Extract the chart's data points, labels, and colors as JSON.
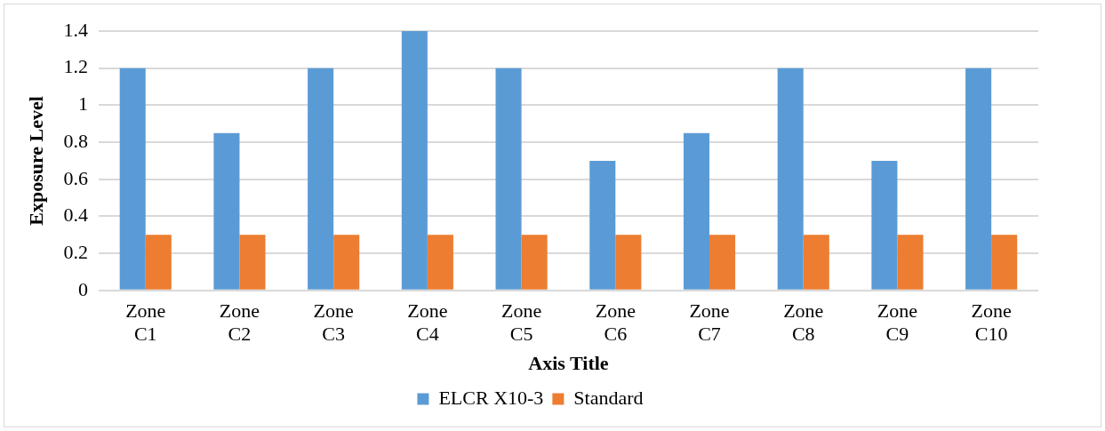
{
  "chart_data": {
    "type": "bar",
    "xlabel": "Axis Title",
    "ylabel": "Exposure Level",
    "categories": [
      "Zone C1",
      "Zone C2",
      "Zone C3",
      "Zone C4",
      "Zone C5",
      "Zone C6",
      "Zone C7",
      "Zone C8",
      "Zone C9",
      "Zone C10"
    ],
    "series": [
      {
        "name": "ELCR X10-3",
        "color": "#5b9bd5",
        "values": [
          1.2,
          0.85,
          1.2,
          1.4,
          1.2,
          0.7,
          0.85,
          1.2,
          0.7,
          1.2
        ]
      },
      {
        "name": "Standard",
        "color": "#ed7d31",
        "values": [
          0.3,
          0.3,
          0.3,
          0.3,
          0.3,
          0.3,
          0.3,
          0.3,
          0.3,
          0.3
        ]
      }
    ],
    "ylim": [
      0,
      1.4
    ],
    "yticks": [
      0,
      0.2,
      0.4,
      0.6,
      0.8,
      1,
      1.2,
      1.4
    ],
    "grid": "y",
    "legend": "bottom"
  }
}
